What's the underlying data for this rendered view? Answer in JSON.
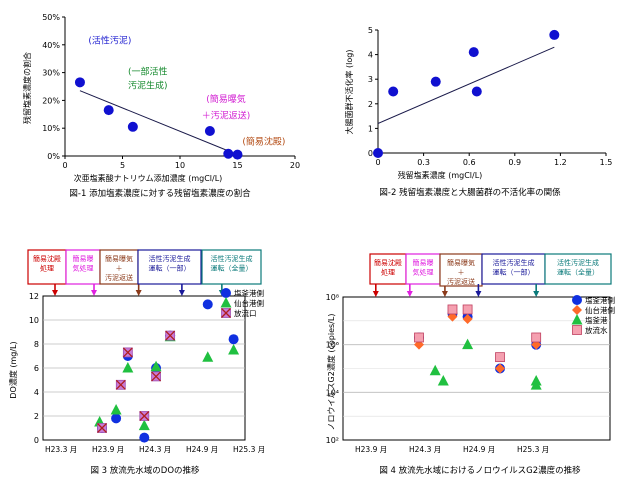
{
  "chart_data": [
    {
      "type": "scatter",
      "caption": "図-1 添加塩素濃度に対する残留塩素濃度の割合",
      "xlabel": "次亜塩素酸ナトリウム添加濃度 (mgCl/L)",
      "ylabel": "残留塩素濃度の割合",
      "xlim": [
        0,
        20
      ],
      "ylim": [
        0,
        50
      ],
      "xticks": [
        "0",
        "5",
        "10",
        "15",
        "20"
      ],
      "yticks": [
        "0%",
        "10%",
        "20%",
        "30%",
        "40%",
        "50%"
      ],
      "grid": false,
      "points": [
        {
          "x": 1.3,
          "y": 26.5
        },
        {
          "x": 3.8,
          "y": 16.5
        },
        {
          "x": 5.9,
          "y": 10.5
        },
        {
          "x": 12.6,
          "y": 9.0
        },
        {
          "x": 14.2,
          "y": 0.8
        },
        {
          "x": 15.0,
          "y": 0.5
        }
      ],
      "trendline": {
        "x": [
          1.3,
          15.0
        ],
        "y": [
          23.5,
          0.5
        ]
      },
      "annotations": [
        {
          "text": "(活性汚泥)",
          "color": "#1f1fd0",
          "x": 3.9,
          "y": 40.5
        },
        {
          "text": "(一部活性",
          "color": "#168a2e",
          "x": 7.2,
          "y": 29.3
        },
        {
          "text": "汚泥生成)",
          "color": "#168a2e",
          "x": 7.2,
          "y": 24.2
        },
        {
          "text": "(簡易曝気",
          "color": "#d21fd2",
          "x": 14.0,
          "y": 19.4
        },
        {
          "text": "＋汚泥返送)",
          "color": "#d21fd2",
          "x": 14.0,
          "y": 13.5
        },
        {
          "text": "(簡易沈殿)",
          "color": "#b34a12",
          "x": 17.3,
          "y": 4.1
        }
      ]
    },
    {
      "type": "scatter",
      "caption": "図-2 残留塩素濃度と大腸菌群の不活化率の関係",
      "xlabel": "残留塩素濃度 (mgCl/L)",
      "ylabel": "大腸菌群不活化率 (log)",
      "xlim": [
        0,
        1.5
      ],
      "ylim": [
        0,
        5
      ],
      "xticks": [
        "0",
        "0.3",
        "0.6",
        "0.9",
        "1.2",
        "1.5"
      ],
      "yticks": [
        "0",
        "1",
        "2",
        "3",
        "4",
        "5"
      ],
      "grid": false,
      "points": [
        {
          "x": 0.0,
          "y": 0.0
        },
        {
          "x": 0.1,
          "y": 2.5
        },
        {
          "x": 0.38,
          "y": 2.9
        },
        {
          "x": 0.63,
          "y": 4.1
        },
        {
          "x": 0.65,
          "y": 2.5
        },
        {
          "x": 1.16,
          "y": 4.8
        }
      ],
      "trendline": {
        "x": [
          0.0,
          1.16
        ],
        "y": [
          1.2,
          4.3
        ]
      }
    },
    {
      "type": "scatter",
      "caption": "図 3 放流先水域のDOの推移",
      "ylabel": "DO濃度 (mg/L)",
      "ylim": [
        0,
        12
      ],
      "xticks": [
        "H23.3 月",
        "H23.9 月",
        "H24.3 月",
        "H24.9 月",
        "H25.3 月"
      ],
      "yticks": [
        "0",
        "2",
        "4",
        "6",
        "8",
        "10",
        "12"
      ],
      "grid": true,
      "phases": [
        {
          "label": [
            "簡易沈殿",
            "処理"
          ],
          "color": "#cc0000",
          "tick": 0.0
        },
        {
          "label": [
            "簡易曝",
            "気処理"
          ],
          "color": "#e020e0",
          "tick": 0.83
        },
        {
          "label": [
            "簡易曝気",
            "＋",
            "汚泥返送"
          ],
          "color": "#8b3a1a",
          "tick": 1.78
        },
        {
          "label": [
            "活性汚泥生成",
            "運転（一部）"
          ],
          "color": "#1a1a9a",
          "tick": 2.7
        },
        {
          "label": [
            "活性汚泥生成",
            "運転（全量）"
          ],
          "color": "#0a7a7a",
          "tick": 3.55
        }
      ],
      "series": [
        {
          "name": "塩釜港側",
          "marker": "circle",
          "color": "#1030e0",
          "points": [
            [
              1.0,
              1.0
            ],
            [
              1.3,
              1.8
            ],
            [
              1.55,
              7.0
            ],
            [
              1.9,
              0.2
            ],
            [
              2.15,
              6.0
            ],
            [
              2.45,
              8.7
            ],
            [
              3.25,
              11.3
            ],
            [
              3.8,
              8.4
            ]
          ]
        },
        {
          "name": "仙台港側",
          "marker": "triangle",
          "color": "#20c040",
          "points": [
            [
              0.95,
              1.5
            ],
            [
              1.3,
              2.5
            ],
            [
              1.55,
              6.0
            ],
            [
              1.9,
              1.2
            ],
            [
              2.15,
              6.1
            ],
            [
              2.45,
              8.6
            ],
            [
              3.25,
              6.9
            ],
            [
              3.8,
              7.5
            ]
          ]
        },
        {
          "name": "放流口",
          "marker": "xsquare",
          "color": "#c87bd8",
          "points": [
            [
              1.0,
              1.0
            ],
            [
              1.4,
              4.6
            ],
            [
              1.55,
              7.3
            ],
            [
              1.9,
              2.0
            ],
            [
              2.15,
              5.3
            ],
            [
              2.45,
              8.7
            ]
          ]
        }
      ]
    },
    {
      "type": "scatter",
      "caption": "図 4 放流先水域におけるノロウイルスG2濃度の推移",
      "ylabel": "ノロウイルスG2濃度 (copies/L)",
      "yscale": "log",
      "ylim": [
        100,
        100000000
      ],
      "xticks": [
        "H23.9 月",
        "H24.3 月",
        "H24.9 月",
        "H25.3 月"
      ],
      "yticks": [
        "10²",
        "10⁴",
        "10⁶",
        "10⁸"
      ],
      "grid": true,
      "phases": [
        {
          "label": [
            "簡易沈殿",
            "処理"
          ],
          "color": "#cc0000",
          "tick": 0.2
        },
        {
          "label": [
            "簡易曝",
            "気処理"
          ],
          "color": "#e020e0",
          "tick": 0.83
        },
        {
          "label": [
            "簡易曝気",
            "＋",
            "汚泥返送"
          ],
          "color": "#8b3a1a",
          "tick": 1.48
        },
        {
          "label": [
            "活性汚泥生成",
            "運転（一部）"
          ],
          "color": "#1a1a9a",
          "tick": 2.1
        },
        {
          "label": [
            "活性汚泥生成",
            "運転（全量）"
          ],
          "color": "#0a7a7a",
          "tick": 3.17
        }
      ],
      "series": [
        {
          "name": "塩釜港側",
          "marker": "circle",
          "color": "#1030e0",
          "points": [
            [
              1.0,
              2000000
            ],
            [
              1.62,
              20000000
            ],
            [
              1.9,
              15000000
            ],
            [
              2.5,
              100000
            ],
            [
              3.17,
              1000000
            ]
          ]
        },
        {
          "name": "仙台港側",
          "marker": "diamond",
          "color": "#ff6a2a",
          "points": [
            [
              1.0,
              1000000
            ],
            [
              1.62,
              15000000
            ],
            [
              1.9,
              12000000
            ],
            [
              2.5,
              100000
            ],
            [
              3.17,
              1000000
            ]
          ]
        },
        {
          "name": "塩釜港",
          "marker": "triangle",
          "color": "#20c040",
          "points": [
            [
              1.3,
              80000
            ],
            [
              1.45,
              30000
            ],
            [
              1.9,
              1000000
            ],
            [
              3.17,
              30000
            ],
            [
              3.17,
              20000
            ]
          ]
        },
        {
          "name": "放流水",
          "marker": "square",
          "color": "#f5a0b0",
          "points": [
            [
              1.0,
              2000000
            ],
            [
              1.62,
              30000000
            ],
            [
              1.9,
              30000000
            ],
            [
              2.5,
              300000
            ],
            [
              3.17,
              2000000
            ]
          ]
        }
      ]
    }
  ]
}
